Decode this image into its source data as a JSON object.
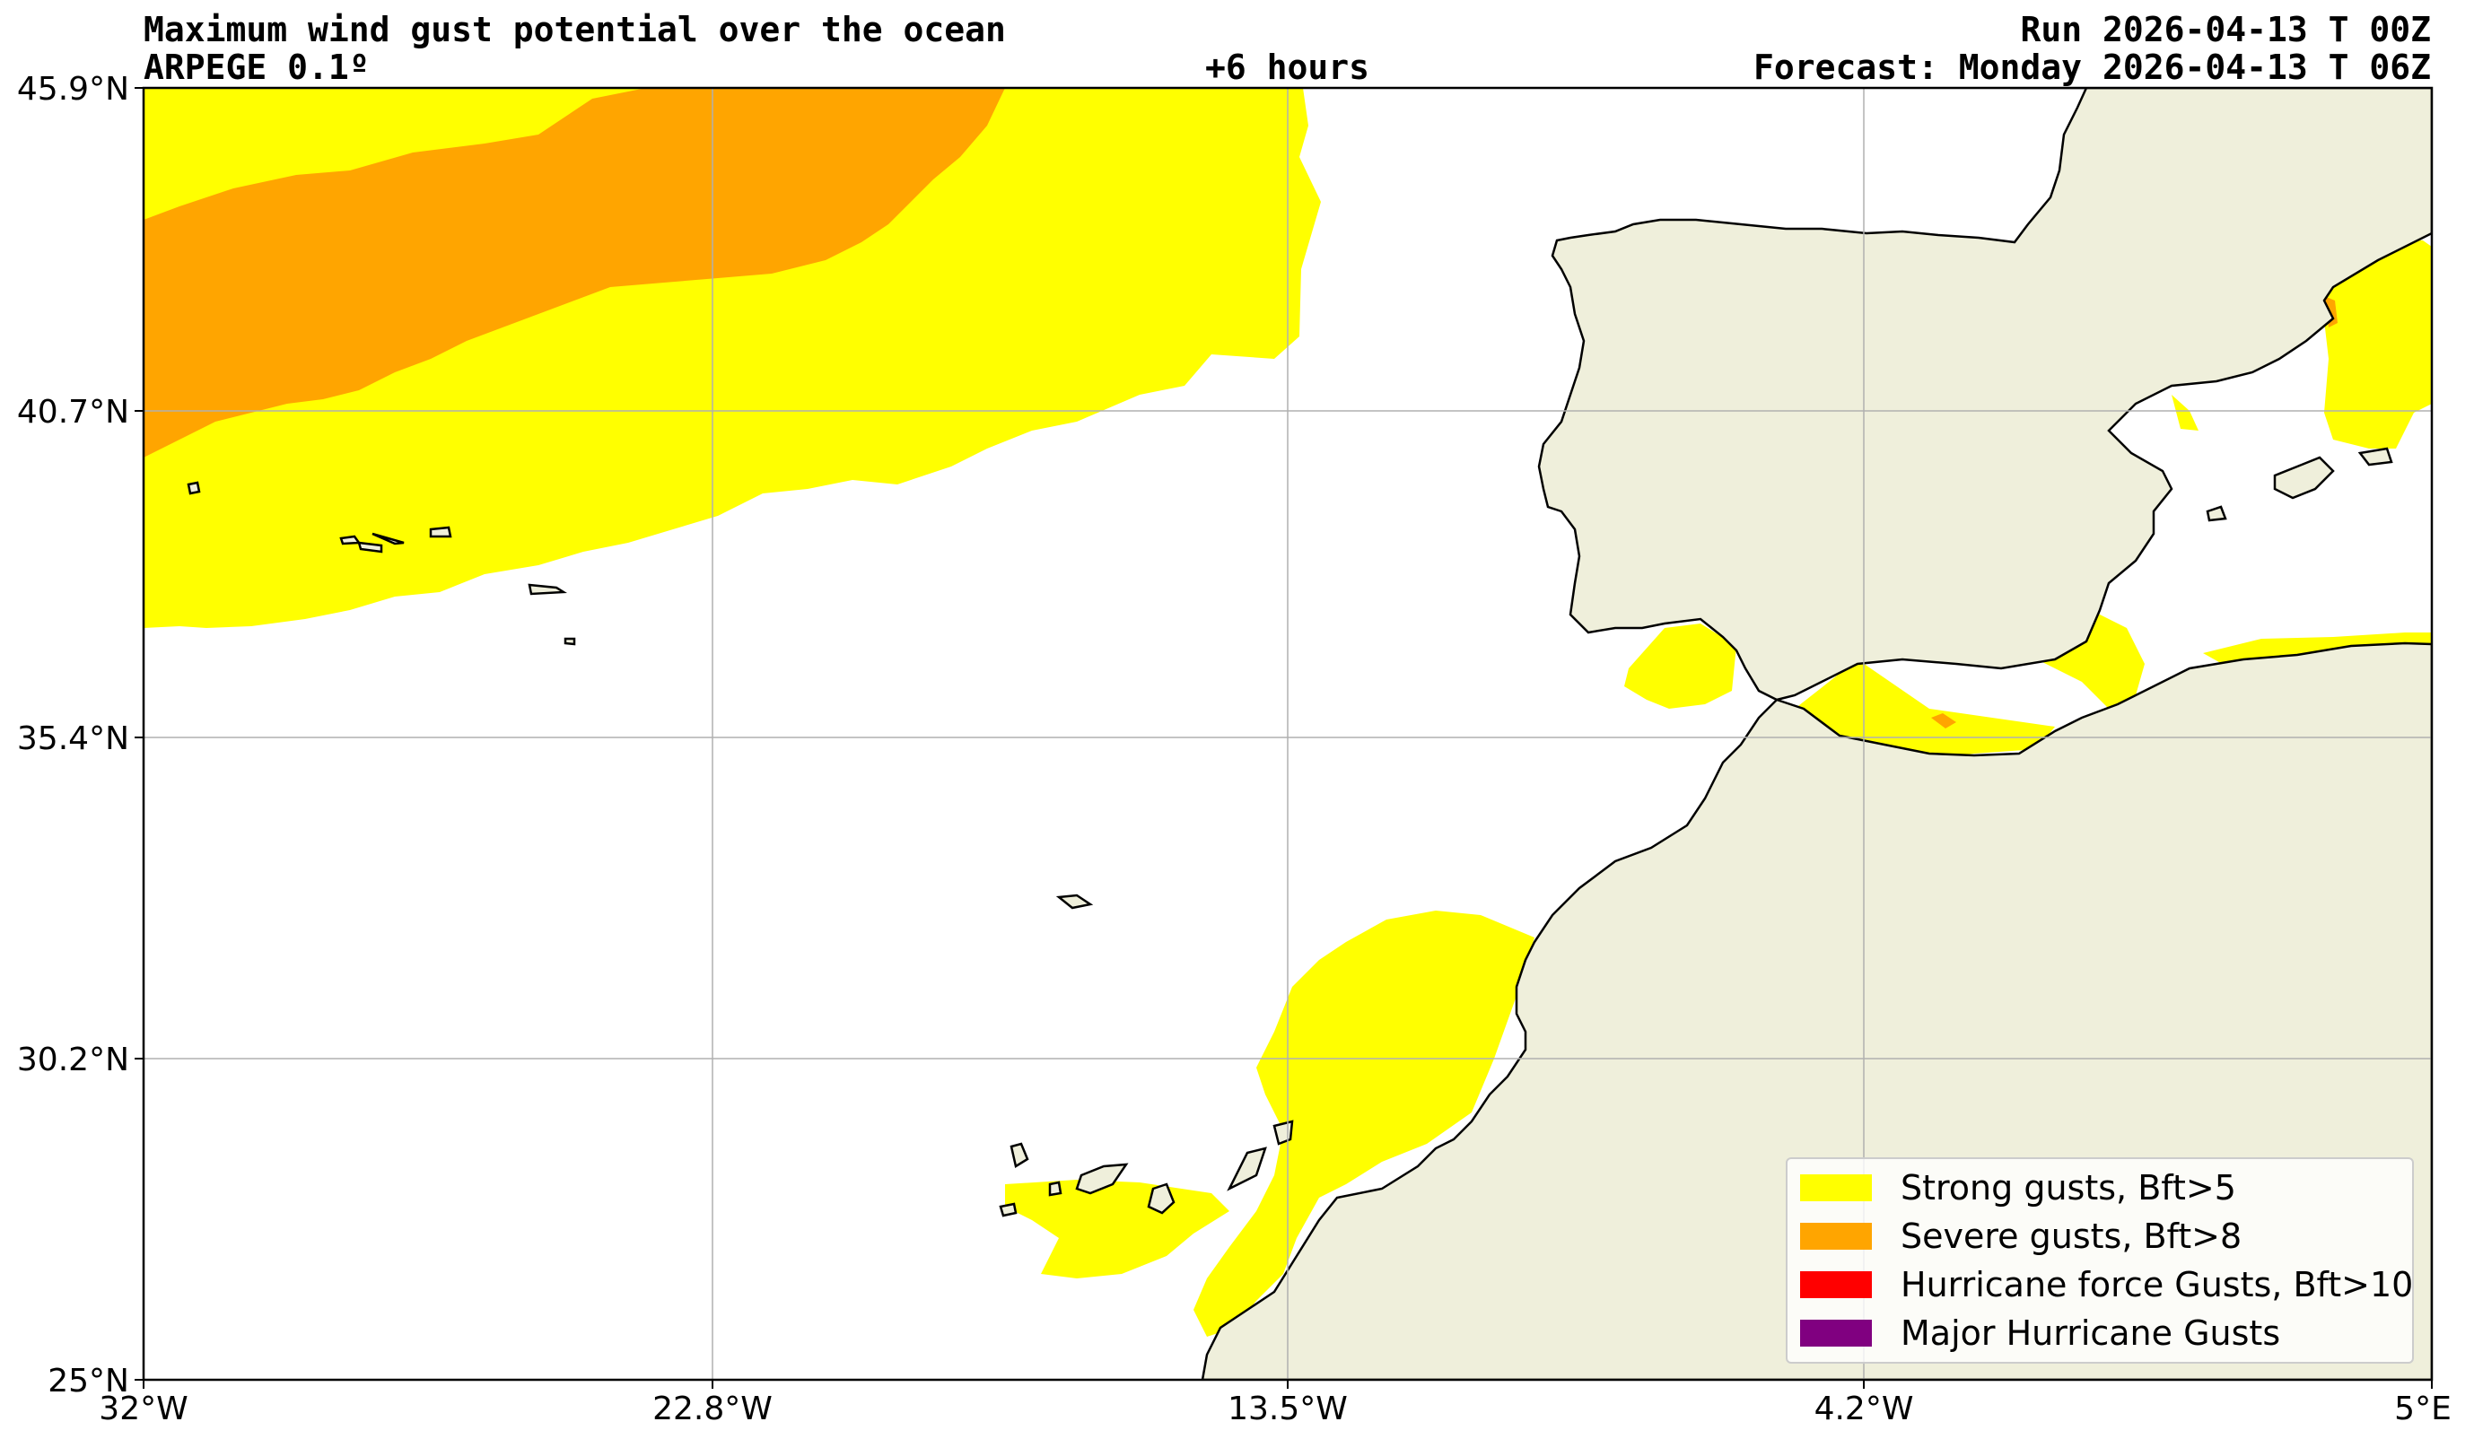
{
  "header": {
    "title": "Maximum wind gust potential over the ocean",
    "model": "ARPEGE 0.1º",
    "lead_time": "+6 hours",
    "run": "Run 2026-04-13 T 00Z",
    "forecast": "Forecast: Monday 2026-04-13 T 06Z"
  },
  "axes": {
    "lat_ticks": [
      "45.9°N",
      "40.7°N",
      "35.4°N",
      "30.2°N",
      "25°N"
    ],
    "lon_ticks": [
      "32°W",
      "22.8°W",
      "13.5°W",
      "4.2°W",
      "5°E"
    ]
  },
  "colors": {
    "strong": "#ffff00",
    "severe": "#ffa500",
    "hurricane": "#ff0000",
    "major": "#800080",
    "land": "#efefdb",
    "ocean": "#ffffff"
  },
  "legend": {
    "items": [
      {
        "label": "Strong gusts, Bft>5",
        "color": "#ffff00"
      },
      {
        "label": "Severe gusts, Bft>8",
        "color": "#ffa500"
      },
      {
        "label": "Hurricane force Gusts, Bft>10",
        "color": "#ff0000"
      },
      {
        "label": "Major Hurricane Gusts",
        "color": "#800080"
      }
    ]
  }
}
